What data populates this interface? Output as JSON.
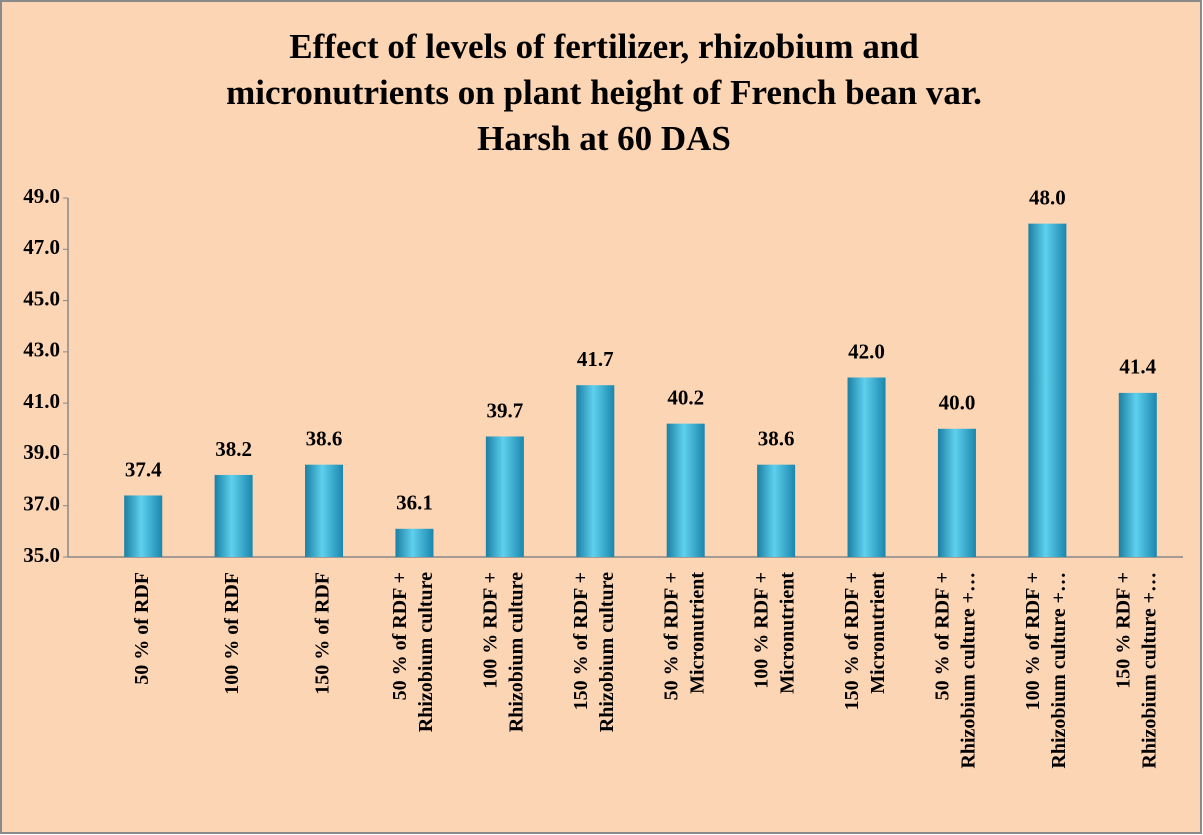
{
  "chart_data": {
    "type": "bar",
    "title": [
      "Effect of levels of fertilizer, rhizobium and",
      "micronutrients on plant height of French bean var.",
      "Harsh at 60 DAS"
    ],
    "categories": [
      [
        "50 % of RDF"
      ],
      [
        "100 % of RDF"
      ],
      [
        "150 % of RDF"
      ],
      [
        "50 % of RDF +",
        "Rhizobium culture"
      ],
      [
        "100 % RDF +",
        "Rhizobium culture"
      ],
      [
        "150 % of RDF +",
        "Rhizobium culture"
      ],
      [
        "50 % of RDF +",
        "Micronutrient"
      ],
      [
        "100 % RDF +",
        "Micronutrient"
      ],
      [
        "150 % of RDF +",
        "Micronutrient"
      ],
      [
        "50 % of RDF +",
        "Rhizobium culture +…"
      ],
      [
        "100 % of RDF +",
        "Rhizobium culture +…"
      ],
      [
        "150 % RDF +",
        "Rhizobium culture +…"
      ]
    ],
    "values": [
      37.4,
      38.2,
      38.6,
      36.1,
      39.7,
      41.7,
      40.2,
      38.6,
      42.0,
      40.0,
      48.0,
      41.4
    ],
    "value_labels": [
      "37.4",
      "38.2",
      "38.6",
      "36.1",
      "39.7",
      "41.7",
      "40.2",
      "38.6",
      "42.0",
      "40.0",
      "48.0",
      "41.4"
    ],
    "color": "#2ea3c8",
    "ylim": [
      35,
      49
    ],
    "yticks": [
      {
        "value": 35,
        "label": "35.0"
      },
      {
        "value": 37,
        "label": "37.0"
      },
      {
        "value": 39,
        "label": "39.0"
      },
      {
        "value": 41,
        "label": "41.0"
      },
      {
        "value": 43,
        "label": "43.0"
      },
      {
        "value": 45,
        "label": "45.0"
      },
      {
        "value": 47,
        "label": "47.0"
      },
      {
        "value": 49,
        "label": "49.0"
      }
    ],
    "grid": false
  }
}
